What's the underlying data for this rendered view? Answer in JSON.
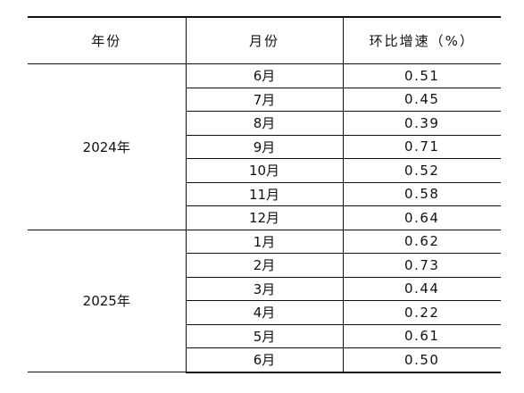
{
  "table": {
    "headers": {
      "year": "年份",
      "month": "月份",
      "rate": "环比增速（%）"
    },
    "groups": [
      {
        "year": "2024年",
        "rows": [
          {
            "month": "6月",
            "rate": "0.51"
          },
          {
            "month": "7月",
            "rate": "0.45"
          },
          {
            "month": "8月",
            "rate": "0.39"
          },
          {
            "month": "9月",
            "rate": "0.71"
          },
          {
            "month": "10月",
            "rate": "0.52"
          },
          {
            "month": "11月",
            "rate": "0.58"
          },
          {
            "month": "12月",
            "rate": "0.64"
          }
        ]
      },
      {
        "year": "2025年",
        "rows": [
          {
            "month": "1月",
            "rate": "0.62"
          },
          {
            "month": "2月",
            "rate": "0.73"
          },
          {
            "month": "3月",
            "rate": "0.44"
          },
          {
            "month": "4月",
            "rate": "0.22"
          },
          {
            "month": "5月",
            "rate": "0.61"
          },
          {
            "month": "6月",
            "rate": "0.50"
          }
        ]
      }
    ]
  }
}
